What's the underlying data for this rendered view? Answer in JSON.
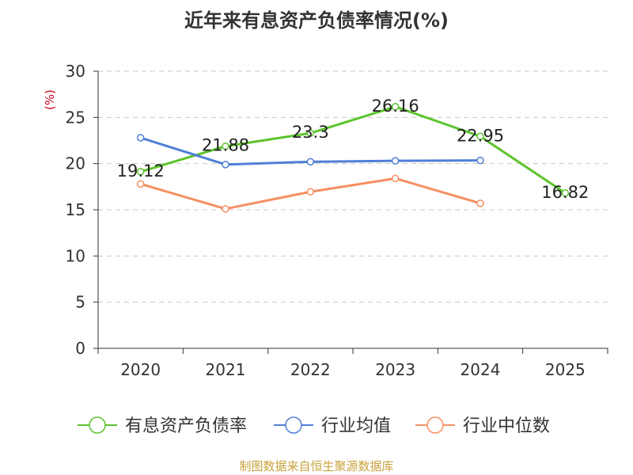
{
  "chart_data": {
    "type": "line",
    "title": "近年来有息资产负债率情况(%)",
    "ylabel": "(%)",
    "xlabel": "",
    "categories": [
      "2020",
      "2021",
      "2022",
      "2023",
      "2024",
      "2025"
    ],
    "ylim": [
      0,
      30
    ],
    "yticks": [
      0,
      5,
      10,
      15,
      20,
      25,
      30
    ],
    "grid": true,
    "legend_position": "bottom",
    "series": [
      {
        "name": "有息资产负债率",
        "color": "#5cc42c",
        "values": [
          19.12,
          21.88,
          23.3,
          26.16,
          22.95,
          16.82
        ],
        "show_labels": true
      },
      {
        "name": "行业均值",
        "color": "#4f7fd6",
        "values": [
          22.8,
          19.9,
          20.2,
          20.3,
          20.35,
          null
        ],
        "show_labels": false
      },
      {
        "name": "行业中位数",
        "color": "#f59062",
        "values": [
          17.8,
          15.1,
          16.95,
          18.4,
          15.7,
          null
        ],
        "show_labels": false
      }
    ]
  },
  "footer": {
    "source": "制图数据来自恒生聚源数据库"
  }
}
